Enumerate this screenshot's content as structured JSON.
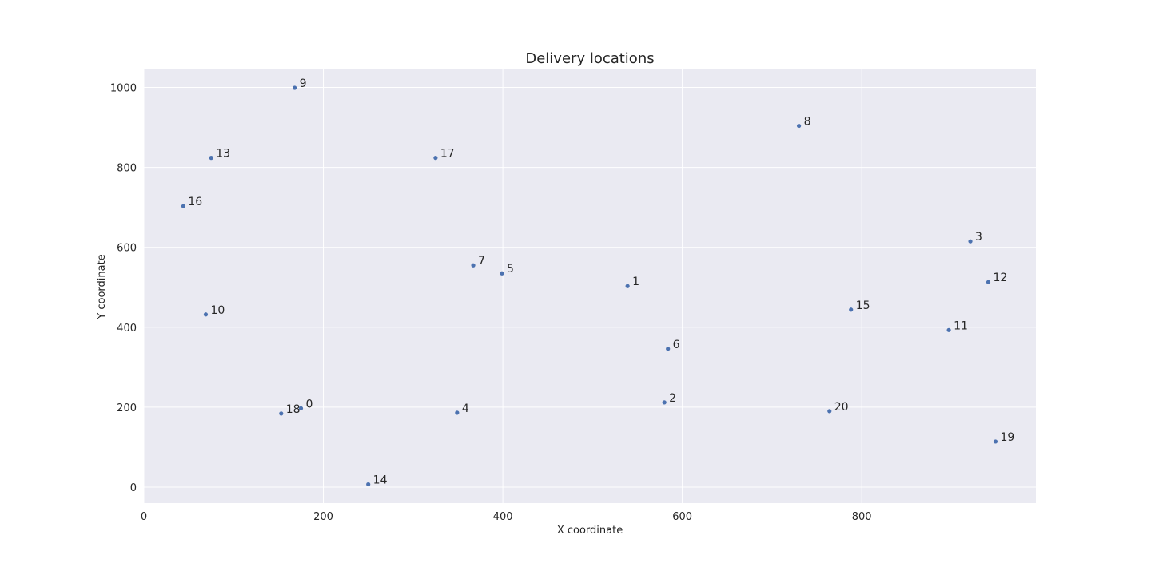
{
  "chart_data": {
    "type": "scatter",
    "title": "Delivery locations",
    "xlabel": "X coordinate",
    "ylabel": "Y coordinate",
    "xlim": [
      0,
      994
    ],
    "ylim": [
      -40,
      1045
    ],
    "xticks": [
      0,
      200,
      400,
      600,
      800
    ],
    "yticks": [
      0,
      200,
      400,
      600,
      800,
      1000
    ],
    "grid": true,
    "marker_color": "#4c72b0",
    "background_color": "#eaeaf2",
    "points": [
      {
        "label": "0",
        "x": 175,
        "y": 197
      },
      {
        "label": "1",
        "x": 539,
        "y": 503
      },
      {
        "label": "2",
        "x": 580,
        "y": 212
      },
      {
        "label": "3",
        "x": 921,
        "y": 615
      },
      {
        "label": "4",
        "x": 349,
        "y": 186
      },
      {
        "label": "5",
        "x": 399,
        "y": 535
      },
      {
        "label": "6",
        "x": 584,
        "y": 346
      },
      {
        "label": "7",
        "x": 367,
        "y": 555
      },
      {
        "label": "8",
        "x": 730,
        "y": 904
      },
      {
        "label": "9",
        "x": 168,
        "y": 999
      },
      {
        "label": "10",
        "x": 69,
        "y": 432
      },
      {
        "label": "11",
        "x": 897,
        "y": 393
      },
      {
        "label": "12",
        "x": 941,
        "y": 513
      },
      {
        "label": "13",
        "x": 75,
        "y": 824
      },
      {
        "label": "14",
        "x": 250,
        "y": 7
      },
      {
        "label": "15",
        "x": 788,
        "y": 444
      },
      {
        "label": "16",
        "x": 44,
        "y": 703
      },
      {
        "label": "17",
        "x": 325,
        "y": 824
      },
      {
        "label": "18",
        "x": 153,
        "y": 184
      },
      {
        "label": "19",
        "x": 949,
        "y": 114
      },
      {
        "label": "20",
        "x": 764,
        "y": 190
      }
    ]
  }
}
